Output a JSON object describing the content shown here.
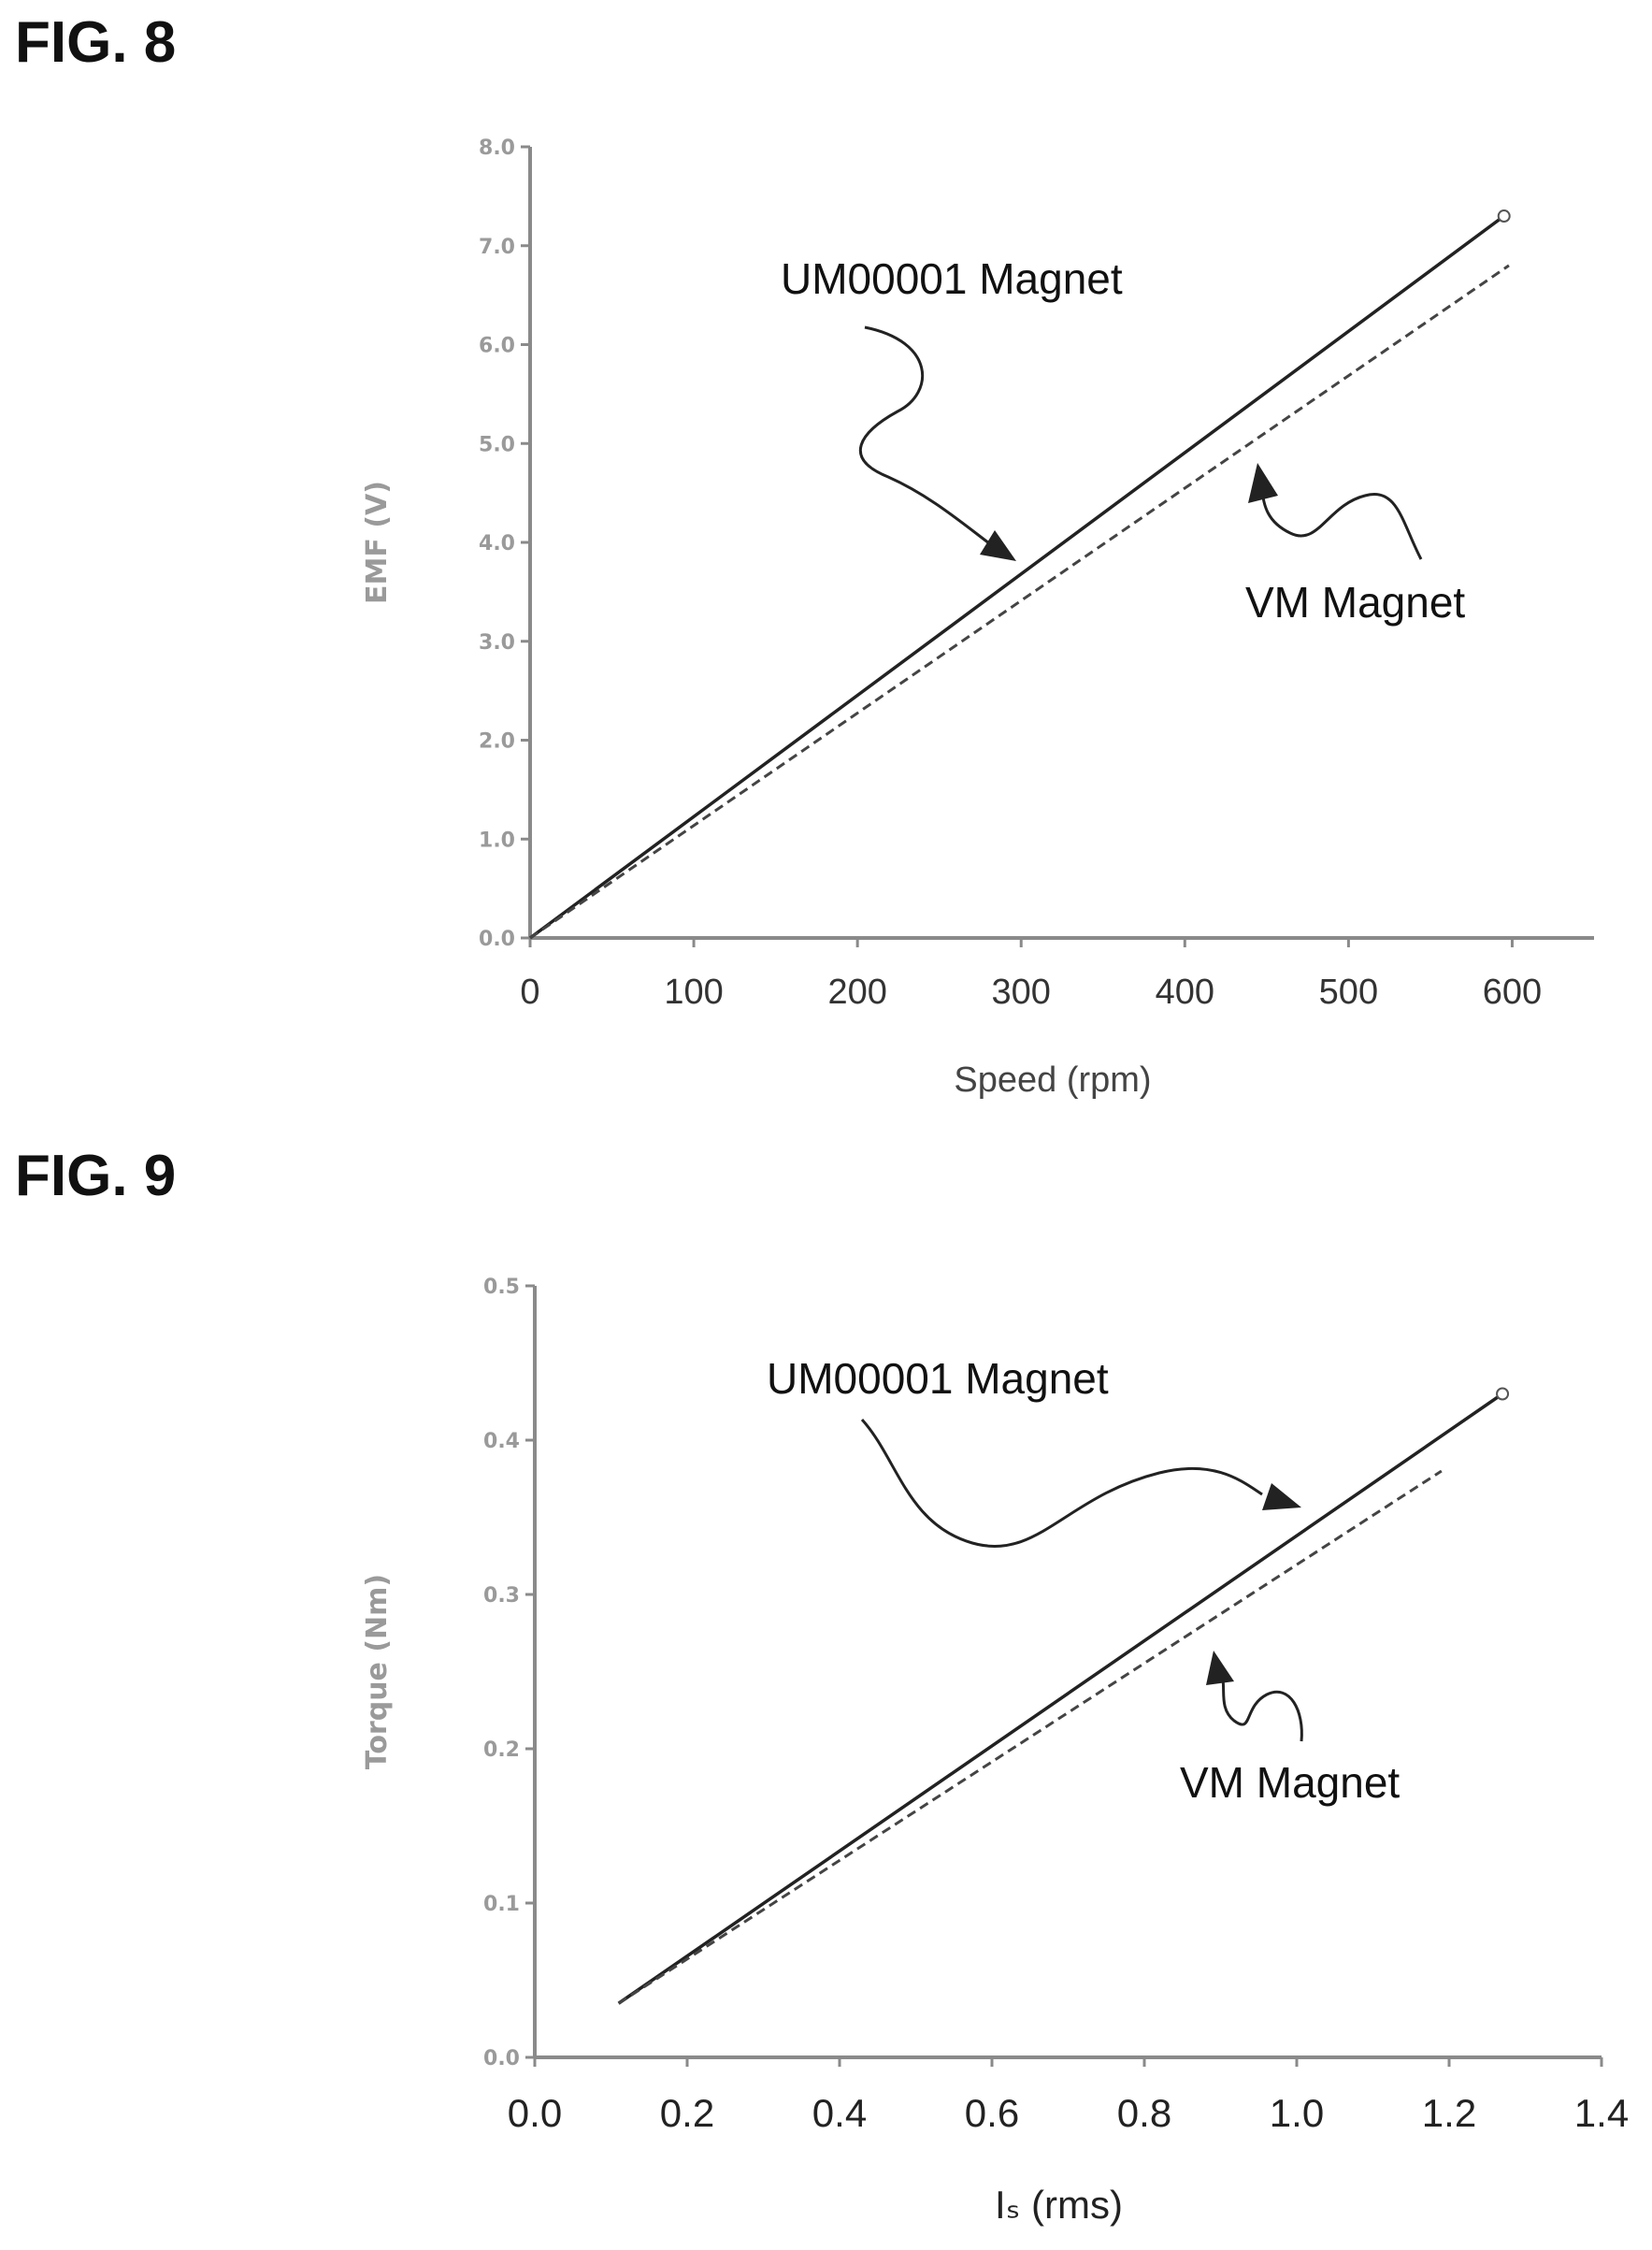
{
  "figures": {
    "fig8_label": "FIG. 8",
    "fig9_label": "FIG. 9"
  },
  "chart_data": [
    {
      "id": "fig8",
      "type": "line",
      "title": "",
      "xlabel": "Speed (rpm)",
      "ylabel": "EMF (V)",
      "xlim": [
        0,
        650
      ],
      "ylim": [
        0,
        8.0
      ],
      "xticks": [
        0,
        100,
        200,
        300,
        400,
        500,
        600
      ],
      "xtick_labels": [
        "0",
        "100",
        "200",
        "300",
        "400",
        "500",
        "600"
      ],
      "yticks": [
        0,
        1,
        2,
        3,
        4,
        5,
        6,
        7,
        8
      ],
      "ytick_labels": [
        "0.0",
        "1.0",
        "2.0",
        "3.0",
        "4.0",
        "5.0",
        "6.0",
        "7.0",
        "8.0"
      ],
      "grid": false,
      "series": [
        {
          "name": "UM00001 Magnet",
          "style": "solid",
          "x": [
            0,
            595
          ],
          "y": [
            0,
            7.3
          ]
        },
        {
          "name": "VM Magnet",
          "style": "dashed",
          "x": [
            0,
            598
          ],
          "y": [
            0,
            6.8
          ]
        }
      ],
      "annotations": [
        {
          "text": "UM00001 Magnet",
          "series": "UM00001 Magnet"
        },
        {
          "text": "VM Magnet",
          "series": "VM Magnet"
        }
      ]
    },
    {
      "id": "fig9",
      "type": "line",
      "title": "",
      "xlabel": "Iₛ (rms)",
      "ylabel": "Torque (Nm)",
      "xlim": [
        0,
        1.4
      ],
      "ylim": [
        0,
        0.5
      ],
      "xticks": [
        0,
        0.2,
        0.4,
        0.6,
        0.8,
        1.0,
        1.2,
        1.4
      ],
      "xtick_labels": [
        "0.0",
        "0.2",
        "0.4",
        "0.6",
        "0.8",
        "1.0",
        "1.2",
        "1.4"
      ],
      "yticks": [
        0,
        0.1,
        0.2,
        0.3,
        0.4,
        0.5
      ],
      "ytick_labels": [
        "0.0",
        "0.1",
        "0.2",
        "0.3",
        "0.4",
        "0.5"
      ],
      "grid": false,
      "series": [
        {
          "name": "UM00001 Magnet",
          "style": "solid",
          "x": [
            0.11,
            1.27
          ],
          "y": [
            0.035,
            0.43
          ]
        },
        {
          "name": "VM Magnet",
          "style": "dashed",
          "x": [
            0.11,
            1.19
          ],
          "y": [
            0.035,
            0.38
          ]
        }
      ],
      "annotations": [
        {
          "text": "UM00001 Magnet",
          "series": "UM00001 Magnet"
        },
        {
          "text": "VM Magnet",
          "series": "VM Magnet"
        }
      ]
    }
  ]
}
